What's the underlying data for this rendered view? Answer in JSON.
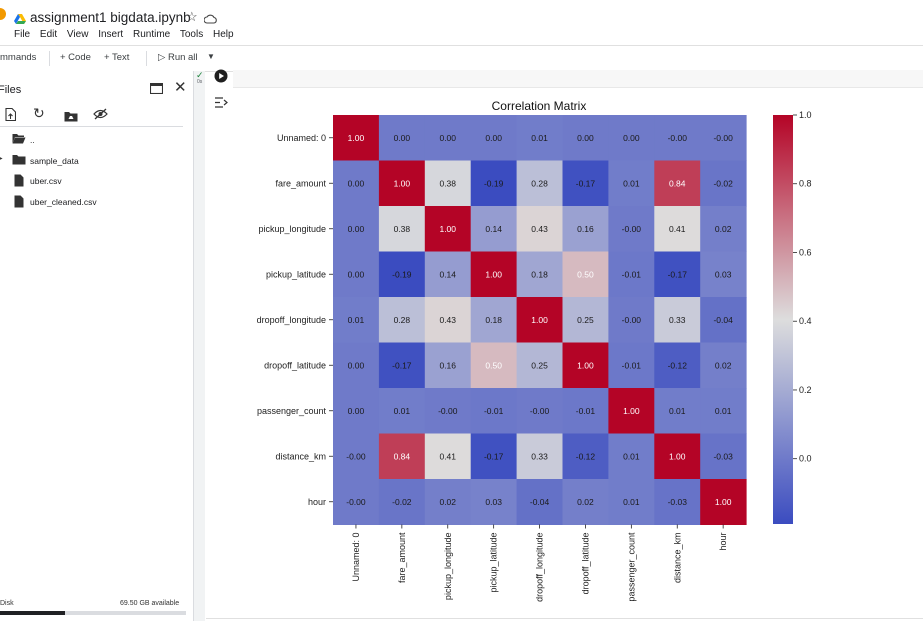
{
  "header": {
    "notebook_title": "assignment1 bigdata.ipynb",
    "menu": [
      "File",
      "Edit",
      "View",
      "Insert",
      "Runtime",
      "Tools",
      "Help"
    ]
  },
  "toolbar": {
    "commands_label": "mmands",
    "code_label": "+ Code",
    "text_label": "+ Text",
    "run_all_label": "Run all"
  },
  "sidebar": {
    "title": "Files",
    "items": [
      {
        "label": "..",
        "icon": "folder-open-icon"
      },
      {
        "label": "sample_data",
        "icon": "folder-icon"
      },
      {
        "label": "uber.csv",
        "icon": "file-icon"
      },
      {
        "label": "uber_cleaned.csv",
        "icon": "file-icon"
      }
    ],
    "disk_label": "Disk",
    "disk_available": "69.50 GB available",
    "disk_used_fraction": 0.35
  },
  "cell": {
    "exec_label": "0s"
  },
  "colors": {
    "accent": "#1a73e8",
    "cmap_low": "#3b4cc0",
    "cmap_mid": "#dddddd",
    "cmap_high": "#b40426"
  },
  "chart_data": {
    "type": "heatmap",
    "title": "Correlation Matrix",
    "labels": [
      "Unnamed: 0",
      "fare_amount",
      "pickup_longitude",
      "pickup_latitude",
      "dropoff_longitude",
      "dropoff_latitude",
      "passenger_count",
      "distance_km",
      "hour"
    ],
    "cells": [
      [
        "1.00",
        "0.00",
        "0.00",
        "0.00",
        "0.01",
        "0.00",
        "0.00",
        "-0.00",
        "-0.00"
      ],
      [
        "0.00",
        "1.00",
        "0.38",
        "-0.19",
        "0.28",
        "-0.17",
        "0.01",
        "0.84",
        "-0.02"
      ],
      [
        "0.00",
        "0.38",
        "1.00",
        "0.14",
        "0.43",
        "0.16",
        "-0.00",
        "0.41",
        "0.02"
      ],
      [
        "0.00",
        "-0.19",
        "0.14",
        "1.00",
        "0.18",
        "0.50",
        "-0.01",
        "-0.17",
        "0.03"
      ],
      [
        "0.01",
        "0.28",
        "0.43",
        "0.18",
        "1.00",
        "0.25",
        "-0.00",
        "0.33",
        "-0.04"
      ],
      [
        "0.00",
        "-0.17",
        "0.16",
        "0.50",
        "0.25",
        "1.00",
        "-0.01",
        "-0.12",
        "0.02"
      ],
      [
        "0.00",
        "0.01",
        "-0.00",
        "-0.01",
        "-0.00",
        "-0.01",
        "1.00",
        "0.01",
        "0.01"
      ],
      [
        "-0.00",
        "0.84",
        "0.41",
        "-0.17",
        "0.33",
        "-0.12",
        "0.01",
        "1.00",
        "-0.03"
      ],
      [
        "-0.00",
        "-0.02",
        "0.02",
        "0.03",
        "-0.04",
        "0.02",
        "0.01",
        "-0.03",
        "1.00"
      ]
    ],
    "colorbar": {
      "vmin": -0.19,
      "vmax": 1.0,
      "ticks": [
        "1.0",
        "0.8",
        "0.6",
        "0.4",
        "0.2",
        "0.0"
      ],
      "tick_values": [
        1.0,
        0.8,
        0.6,
        0.4,
        0.2,
        0.0
      ]
    },
    "colormap": "coolwarm"
  }
}
